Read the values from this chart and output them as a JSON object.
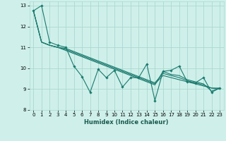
{
  "title": "",
  "xlabel": "Humidex (Indice chaleur)",
  "xlim": [
    -0.5,
    23.5
  ],
  "ylim": [
    8,
    13.2
  ],
  "yticks": [
    8,
    9,
    10,
    11,
    12,
    13
  ],
  "xticks": [
    0,
    1,
    2,
    3,
    4,
    5,
    6,
    7,
    8,
    9,
    10,
    11,
    12,
    13,
    14,
    15,
    16,
    17,
    18,
    19,
    20,
    21,
    22,
    23
  ],
  "bg_color": "#cff0ea",
  "grid_color": "#aad8d0",
  "line_color": "#1a7a6e",
  "series_zigzag": [
    12.75,
    13.0,
    11.25,
    11.1,
    11.0,
    10.1,
    9.6,
    8.85,
    9.95,
    9.55,
    9.9,
    9.1,
    9.55,
    9.55,
    10.2,
    8.45,
    9.85,
    9.9,
    10.1,
    9.35,
    9.3,
    9.55,
    8.85,
    9.05
  ],
  "series_smooth1": [
    12.75,
    11.25,
    11.1,
    11.0,
    10.9,
    10.75,
    10.6,
    10.45,
    10.3,
    10.15,
    10.0,
    9.85,
    9.7,
    9.55,
    9.4,
    9.25,
    9.65,
    9.55,
    9.45,
    9.35,
    9.25,
    9.15,
    9.05,
    9.0
  ],
  "series_smooth2": [
    12.75,
    11.25,
    11.1,
    11.0,
    10.95,
    10.8,
    10.65,
    10.5,
    10.35,
    10.2,
    10.05,
    9.9,
    9.75,
    9.6,
    9.45,
    9.3,
    9.75,
    9.65,
    9.55,
    9.4,
    9.3,
    9.2,
    9.05,
    9.05
  ],
  "series_smooth3": [
    12.75,
    11.25,
    11.1,
    11.0,
    10.85,
    10.7,
    10.55,
    10.4,
    10.25,
    10.1,
    9.95,
    9.8,
    9.65,
    9.5,
    9.35,
    9.2,
    9.85,
    9.7,
    9.65,
    9.45,
    9.35,
    9.25,
    8.9,
    9.05
  ]
}
